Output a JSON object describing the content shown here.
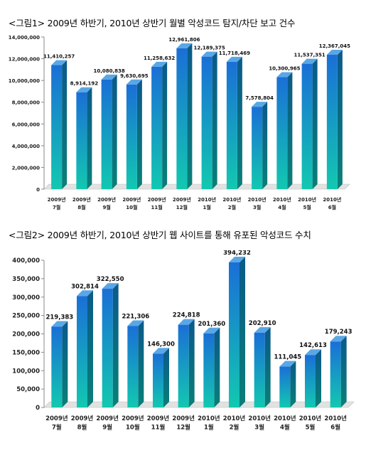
{
  "captions": {
    "fig1": "<그림1> 2009년 하반기, 2010년 상반기 월별 악성코드 탐지/차단 보고 건수",
    "fig2": "<그림2> 2009년 하반기, 2010년 상반기 웹 사이트를 통해 유포된 악성코드 수치"
  },
  "colors": {
    "bar_top": "#1a6fd6",
    "bar_bottom": "#12c8b0",
    "bar_side": "#0a5a8a",
    "bar_cap": "#5aa7e6",
    "floor": "#e2e2e2"
  },
  "chart_data": [
    {
      "type": "bar",
      "title": "",
      "categories": [
        "2009년 7월",
        "2009년 8월",
        "2009년 9월",
        "2009년 10월",
        "2009년 11월",
        "2009년 12월",
        "2010년 1월",
        "2010년 2월",
        "2010년 3월",
        "2010년 4월",
        "2010년 5월",
        "2010년 6월"
      ],
      "category_lines": [
        [
          "2009년",
          "7월"
        ],
        [
          "2009년",
          "8월"
        ],
        [
          "2009년",
          "9월"
        ],
        [
          "2009년",
          "10월"
        ],
        [
          "2009년",
          "11월"
        ],
        [
          "2009년",
          "12월"
        ],
        [
          "2010년",
          "1월"
        ],
        [
          "2010년",
          "2월"
        ],
        [
          "2010년",
          "3월"
        ],
        [
          "2010년",
          "4월"
        ],
        [
          "2010년",
          "5월"
        ],
        [
          "2010년",
          "6월"
        ]
      ],
      "values": [
        11410257,
        8914192,
        10080838,
        9630695,
        11258632,
        12961806,
        12189375,
        11718469,
        7578804,
        10300965,
        11537351,
        12367045
      ],
      "value_labels": [
        "11,410,257",
        "8,914,192",
        "10,080,838",
        "9,630,695",
        "11,258,632",
        "12,961,806",
        "12,189,375",
        "11,718,469",
        "7,578,804",
        "10,300,965",
        "11,537,351",
        "12,367,045"
      ],
      "ylim": [
        0,
        14000000
      ],
      "yticks": [
        0,
        2000000,
        4000000,
        6000000,
        8000000,
        10000000,
        12000000,
        14000000
      ],
      "ytick_labels": [
        "0",
        "2,000,000",
        "4,000,000",
        "6,000,000",
        "8,000,000",
        "10,000,000",
        "12,000,000",
        "14,000,000"
      ],
      "xlabel": "",
      "ylabel": "",
      "grid": false,
      "legend": "none"
    },
    {
      "type": "bar",
      "title": "",
      "categories": [
        "2009년 7월",
        "2009년 8월",
        "2009년 9월",
        "2009년 10월",
        "2009년 11월",
        "2009년 12월",
        "2010년 1월",
        "2010년 2월",
        "2010년 3월",
        "2010년 4월",
        "2010년 5월",
        "2010년 6월"
      ],
      "category_lines": [
        [
          "2009년",
          "7월"
        ],
        [
          "2009년",
          "8월"
        ],
        [
          "2009년",
          "9월"
        ],
        [
          "2009년",
          "10월"
        ],
        [
          "2009년",
          "11월"
        ],
        [
          "2009년",
          "12월"
        ],
        [
          "2010년",
          "1월"
        ],
        [
          "2010년",
          "2월"
        ],
        [
          "2010년",
          "3월"
        ],
        [
          "2010년",
          "4월"
        ],
        [
          "2010년",
          "5월"
        ],
        [
          "2010년",
          "6월"
        ]
      ],
      "values": [
        219383,
        302814,
        322550,
        221306,
        146300,
        224818,
        201360,
        394232,
        202910,
        111045,
        142613,
        179243
      ],
      "value_labels": [
        "219,383",
        "302,814",
        "322,550",
        "221,306",
        "146,300",
        "224,818",
        "201,360",
        "394,232",
        "202,910",
        "111,045",
        "142,613",
        "179,243"
      ],
      "ylim": [
        0,
        400000
      ],
      "yticks": [
        0,
        50000,
        100000,
        150000,
        200000,
        250000,
        300000,
        350000,
        400000
      ],
      "ytick_labels": [
        "0",
        "50,000",
        "100,000",
        "150,000",
        "200,000",
        "250,000",
        "300,000",
        "350,000",
        "400,000"
      ],
      "xlabel": "",
      "ylabel": "",
      "grid": false,
      "legend": "none"
    }
  ]
}
